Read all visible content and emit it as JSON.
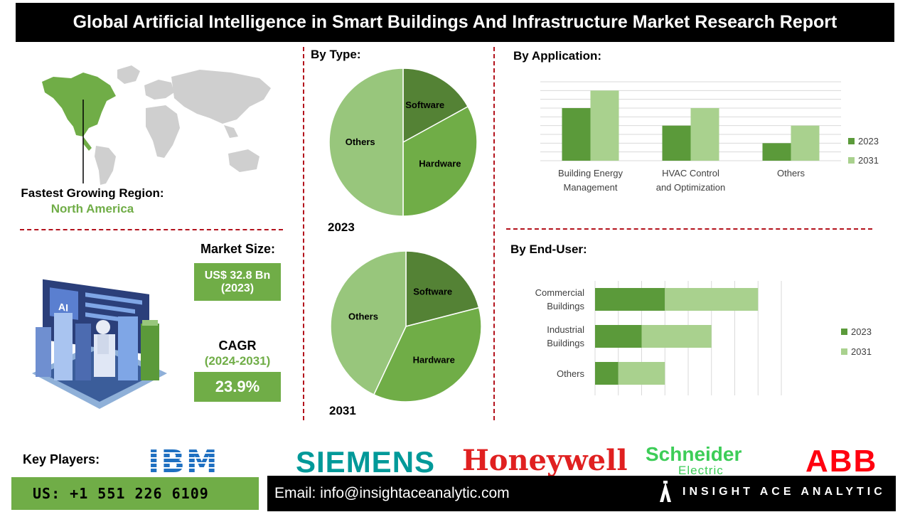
{
  "header": {
    "title": "Global Artificial Intelligence in Smart Buildings And Infrastructure Market Research Report"
  },
  "region": {
    "label": "Fastest Growing Region:",
    "value": "North America"
  },
  "market_size": {
    "label": "Market Size:",
    "value_line1": "US$ 32.8 Bn",
    "value_line2": "(2023)"
  },
  "cagr": {
    "label": "CAGR",
    "period": "(2024-2031)",
    "value": "23.9%"
  },
  "by_type": {
    "title": "By Type:",
    "year_2023": "2023",
    "year_2031": "2031"
  },
  "by_application": {
    "title": "By Application:"
  },
  "by_end_user": {
    "title": "By End-User:"
  },
  "key_players": {
    "label": "Key Players:",
    "logos": {
      "ibm": "IBM",
      "siemens": "SIEMENS",
      "honeywell": "Honeywell",
      "schneider": "Schneider",
      "schneider_sub": "Electric",
      "abb": "ABB"
    }
  },
  "footer": {
    "phone": "US: +1 551 226 6109",
    "email": "Email: info@insightaceanalytic.com",
    "brand": "INSIGHT ACE ANALYTIC"
  },
  "colors": {
    "dark_green": "#5b9a3a",
    "mid_green": "#70ad47",
    "light_green": "#a9d18e",
    "red": "#b3121c"
  },
  "chart_data": [
    {
      "type": "pie",
      "name": "By Type 2023",
      "labels": [
        "Software",
        "Hardware",
        "Others"
      ],
      "values": [
        17,
        33,
        50
      ],
      "colors": [
        "#548235",
        "#70ad47",
        "#98c67c"
      ]
    },
    {
      "type": "pie",
      "name": "By Type 2031",
      "labels": [
        "Software",
        "Hardware",
        "Others"
      ],
      "values": [
        21,
        36,
        43
      ],
      "colors": [
        "#548235",
        "#70ad47",
        "#98c67c"
      ]
    },
    {
      "type": "bar",
      "name": "By Application",
      "categories": [
        "Building Energy Management",
        "HVAC Control and Optimization",
        "Others"
      ],
      "series": [
        {
          "name": "2023",
          "values": [
            3,
            2,
            1
          ],
          "color": "#5b9a3a"
        },
        {
          "name": "2031",
          "values": [
            4,
            3,
            2
          ],
          "color": "#a9d18e"
        }
      ],
      "ylim": [
        0,
        4.5
      ],
      "grid": true,
      "legend": "right"
    },
    {
      "type": "bar",
      "orientation": "horizontal",
      "name": "By End-User",
      "categories": [
        "Commercial Buildings",
        "Industrial Buildings",
        "Others"
      ],
      "series": [
        {
          "name": "2023",
          "values": [
            3,
            2,
            1
          ],
          "color": "#5b9a3a"
        },
        {
          "name": "2031",
          "values": [
            4,
            3,
            2
          ],
          "color": "#a9d18e"
        }
      ],
      "stacked": true,
      "xlim": [
        0,
        8
      ],
      "grid": true,
      "legend": "right"
    }
  ]
}
